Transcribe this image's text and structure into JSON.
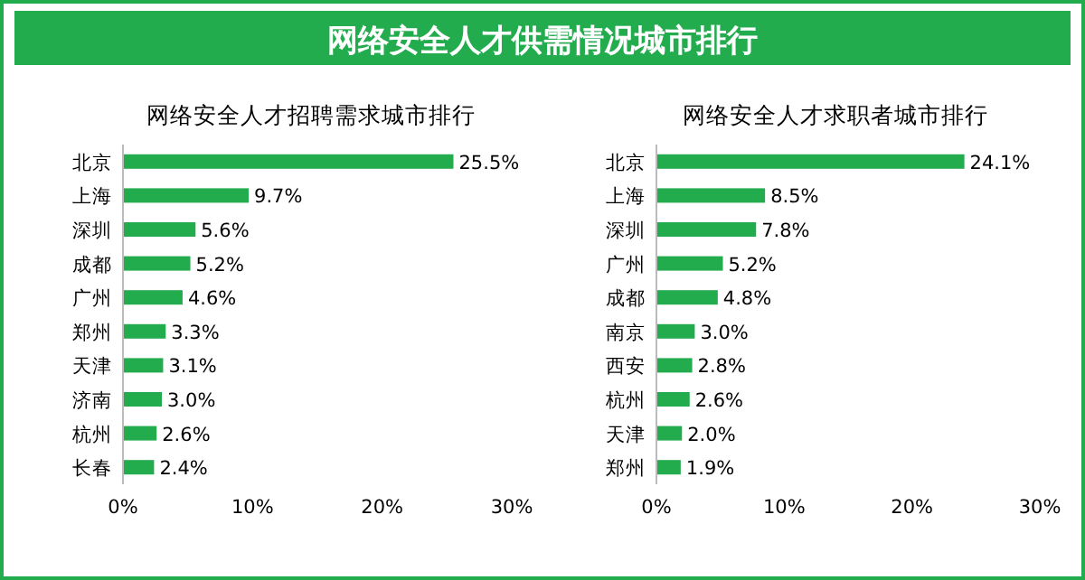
{
  "chart_data": [
    {
      "type": "other",
      "title": "网络安全人才供需情况城市排行",
      "color": "#22ac4e"
    },
    {
      "type": "bar",
      "orientation": "horizontal",
      "title": "网络安全人才招聘需求城市排行",
      "categories": [
        "北京",
        "上海",
        "深圳",
        "成都",
        "广州",
        "郑州",
        "天津",
        "济南",
        "杭州",
        "长春"
      ],
      "values": [
        25.5,
        9.7,
        5.6,
        5.2,
        4.6,
        3.3,
        3.1,
        3.0,
        2.6,
        2.4
      ],
      "value_labels": [
        "25.5%",
        "9.7%",
        "5.6%",
        "5.2%",
        "4.6%",
        "3.3%",
        "3.1%",
        "3.0%",
        "2.6%",
        "2.4%"
      ],
      "color": "#22ac4e",
      "xlim": [
        0,
        30
      ],
      "xticks": [
        {
          "value": 0,
          "label": "0%"
        },
        {
          "value": 10,
          "label": "10%"
        },
        {
          "value": 20,
          "label": "20%"
        },
        {
          "value": 30,
          "label": "30%"
        }
      ],
      "grid": false
    },
    {
      "type": "bar",
      "orientation": "horizontal",
      "title": "网络安全人才求职者城市排行",
      "categories": [
        "北京",
        "上海",
        "深圳",
        "广州",
        "成都",
        "南京",
        "西安",
        "杭州",
        "天津",
        "郑州"
      ],
      "values": [
        24.1,
        8.5,
        7.8,
        5.2,
        4.8,
        3.0,
        2.8,
        2.6,
        2.0,
        1.9
      ],
      "value_labels": [
        "24.1%",
        "8.5%",
        "7.8%",
        "5.2%",
        "4.8%",
        "3.0%",
        "2.8%",
        "2.6%",
        "2.0%",
        "1.9%"
      ],
      "color": "#22ac4e",
      "xlim": [
        0,
        30
      ],
      "xticks": [
        {
          "value": 0,
          "label": "0%"
        },
        {
          "value": 10,
          "label": "10%"
        },
        {
          "value": 20,
          "label": "20%"
        },
        {
          "value": 30,
          "label": "30%"
        }
      ],
      "grid": false
    }
  ]
}
